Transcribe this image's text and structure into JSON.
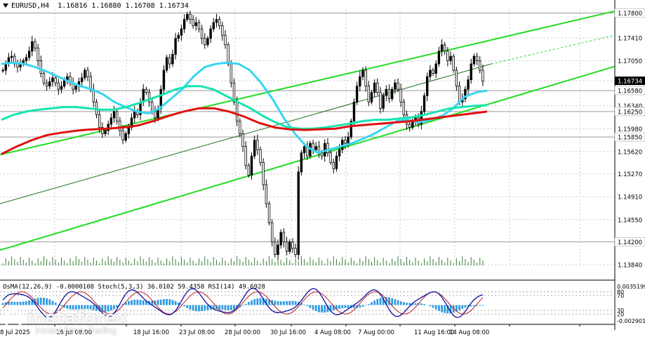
{
  "header": {
    "symbol": "EURUSD,H4",
    "ohlc": "1.16816 1.16880 1.16708 1.16734"
  },
  "indicator_header": {
    "osma": "OsMA(12,26,9) -0.0000108",
    "stoch": "Stoch(5,3,3) 36.0102 59.4358",
    "rsi": "RSI(14) 49.6928"
  },
  "watermark": {
    "brand": "instaforex",
    "tagline": "Instant Forex Trading"
  },
  "colors": {
    "bull_candle": "#000000",
    "ema_fast": "#36d7f2",
    "ema_mid": "#16e5b0",
    "ema_slow": "#e01010",
    "channel": "#22dd22",
    "inner_line": "#1f6f1f",
    "price_tag_bg": "#000000",
    "grid": "#c8c8c8",
    "histogram": "#2e9be0",
    "stoch_main": "#1010a0",
    "stoch_signal": "#c02020"
  },
  "chart_data": {
    "type": "line",
    "ylim": [
      1.1383,
      1.1785
    ],
    "price_labels": [
      {
        "label": "1.17800",
        "value": 1.178,
        "tagged": true
      },
      {
        "label": "1.17410",
        "value": 1.1741
      },
      {
        "label": "1.17050",
        "value": 1.1705
      },
      {
        "label": "1.16734",
        "value": 1.16734,
        "current": true
      },
      {
        "label": "1.16580",
        "value": 1.1658,
        "tagged": true
      },
      {
        "label": "1.16340",
        "value": 1.1634
      },
      {
        "label": "1.16250",
        "value": 1.1625,
        "tagged": true
      },
      {
        "label": "1.15980",
        "value": 1.1598
      },
      {
        "label": "1.15850",
        "value": 1.1585,
        "tagged": true
      },
      {
        "label": "1.15620",
        "value": 1.1562
      },
      {
        "label": "1.15270",
        "value": 1.1527
      },
      {
        "label": "1.14910",
        "value": 1.1491
      },
      {
        "label": "1.14550",
        "value": 1.1455
      },
      {
        "label": "1.14200",
        "value": 1.142,
        "tagged": true
      },
      {
        "label": "1.13840",
        "value": 1.1384
      }
    ],
    "x_labels": [
      "8 Jul 2025",
      "16 Jul 08:00",
      "18 Jul 16:00",
      "23 Jul 08:00",
      "28 Jul 00:00",
      "30 Jul 16:00",
      "4 Aug 08:00",
      "7 Aug 00:00",
      "11 Aug 16:00",
      "14 Aug 08:00"
    ],
    "close_path": [
      1.169,
      1.17,
      1.171,
      1.1712,
      1.17,
      1.1695,
      1.17,
      1.1705,
      1.171,
      1.172,
      1.1735,
      1.1725,
      1.1705,
      1.1685,
      1.167,
      1.1665,
      1.1672,
      1.1678,
      1.167,
      1.166,
      1.1665,
      1.1675,
      1.168,
      1.167,
      1.166,
      1.1665,
      1.1672,
      1.1678,
      1.169,
      1.168,
      1.166,
      1.164,
      1.162,
      1.16,
      1.159,
      1.1595,
      1.1605,
      1.1615,
      1.1625,
      1.161,
      1.1595,
      1.158,
      1.159,
      1.16,
      1.1615,
      1.1625,
      1.162,
      1.164,
      1.166,
      1.1655,
      1.164,
      1.1625,
      1.1615,
      1.163,
      1.166,
      1.169,
      1.171,
      1.17,
      1.1715,
      1.174,
      1.1745,
      1.1755,
      1.177,
      1.1778,
      1.177,
      1.176,
      1.1765,
      1.1755,
      1.174,
      1.173,
      1.174,
      1.1755,
      1.1765,
      1.177,
      1.176,
      1.1745,
      1.173,
      1.17,
      1.167,
      1.164,
      1.161,
      1.159,
      1.157,
      1.154,
      1.1525,
      1.1555,
      1.158,
      1.1565,
      1.1545,
      1.151,
      1.148,
      1.145,
      1.142,
      1.14,
      1.1415,
      1.1435,
      1.142,
      1.1405,
      1.142,
      1.141,
      1.14,
      1.153,
      1.156,
      1.157,
      1.1555,
      1.1575,
      1.1565,
      1.157,
      1.156,
      1.1555,
      1.1575,
      1.156,
      1.1545,
      1.1535,
      1.1555,
      1.1565,
      1.158,
      1.1575,
      1.1585,
      1.161,
      1.164,
      1.1665,
      1.168,
      1.169,
      1.1665,
      1.164,
      1.1655,
      1.167,
      1.1655,
      1.163,
      1.165,
      1.166,
      1.1645,
      1.166,
      1.167,
      1.166,
      1.164,
      1.162,
      1.1605,
      1.16,
      1.161,
      1.1615,
      1.1605,
      1.1625,
      1.165,
      1.168,
      1.169,
      1.1685,
      1.17,
      1.172,
      1.173,
      1.172,
      1.1705,
      1.1712,
      1.169,
      1.1665,
      1.164,
      1.1645,
      1.166,
      1.1675,
      1.17,
      1.1712,
      1.1705,
      1.169,
      1.1673
    ],
    "series": [
      {
        "values_from": "ema_fast",
        "points": [
          1.17,
          1.1702,
          1.17,
          1.1695,
          1.1688,
          1.168,
          1.1672,
          1.1665,
          1.166,
          1.1652,
          1.164,
          1.1632,
          1.1625,
          1.1622,
          1.163,
          1.1645,
          1.166,
          1.168,
          1.1695,
          1.17,
          1.1702,
          1.17,
          1.169,
          1.167,
          1.1645,
          1.1615,
          1.159,
          1.157,
          1.156,
          1.1565,
          1.157,
          1.1575,
          1.1582,
          1.159,
          1.16,
          1.161,
          1.1612,
          1.1608,
          1.1612,
          1.1618,
          1.163,
          1.1648,
          1.1655,
          1.1658
        ]
      },
      {
        "values_from": "ema_mid",
        "points": [
          1.1612,
          1.162,
          1.1625,
          1.1628,
          1.163,
          1.1632,
          1.1632,
          1.163,
          1.1628,
          1.1628,
          1.1632,
          1.1638,
          1.1645,
          1.1652,
          1.166,
          1.1665,
          1.1665,
          1.166,
          1.165,
          1.164,
          1.163,
          1.1618,
          1.1608,
          1.16,
          1.1598,
          1.1598,
          1.16,
          1.1603,
          1.1606,
          1.161,
          1.1612,
          1.1612,
          1.1614,
          1.1616,
          1.162,
          1.1625,
          1.163,
          1.1632,
          1.1634,
          1.1635
        ]
      },
      {
        "values_from": "ema_slow",
        "points": [
          1.1558,
          1.157,
          1.158,
          1.1588,
          1.1592,
          1.1595,
          1.1597,
          1.1598,
          1.16,
          1.1603,
          1.161,
          1.1618,
          1.1625,
          1.163,
          1.163,
          1.1625,
          1.1617,
          1.1607,
          1.16,
          1.1597,
          1.1596,
          1.1597,
          1.1598,
          1.1602,
          1.1604,
          1.1606,
          1.1608,
          1.161,
          1.1613,
          1.1616,
          1.1619,
          1.1622,
          1.1625
        ]
      }
    ],
    "oscillator_levels": [
      {
        "label": "0.0035199",
        "value": 0.0035199
      },
      {
        "label": "80",
        "value": 80
      },
      {
        "label": "70",
        "value": 70
      },
      {
        "label": "30",
        "value": 30
      },
      {
        "label": "20",
        "value": 20
      },
      {
        "label": "-0.002901",
        "value": -0.002901
      }
    ]
  }
}
